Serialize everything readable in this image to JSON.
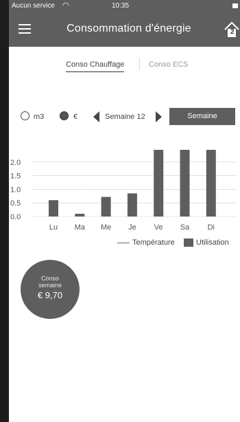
{
  "status_bar": {
    "carrier": "Aucun service",
    "time": "10:35"
  },
  "header": {
    "title": "Consommation d'énergie",
    "menu_icon": "hamburger-icon",
    "home_icon": "home-icon",
    "home_count": "2"
  },
  "tabs": [
    {
      "label": "Conso Chauffage",
      "active": true
    },
    {
      "label": "Conso ECS",
      "active": false
    }
  ],
  "controls": {
    "unit_options": [
      {
        "label": "m3",
        "selected": false
      },
      {
        "label": "€",
        "selected": true
      }
    ],
    "week_label": "Semaine 12",
    "period_button": "Semaine"
  },
  "chart_data": {
    "type": "bar",
    "categories": [
      "Lu",
      "Ma",
      "Me",
      "Je",
      "Ve",
      "Sa",
      "Di"
    ],
    "series": [
      {
        "name": "Utilisation",
        "values": [
          0.6,
          0.1,
          0.72,
          0.85,
          2.45,
          2.45,
          2.45
        ]
      }
    ],
    "y_ticks": [
      "0.0",
      "0.5",
      "1.0",
      "1.5",
      "2.0"
    ],
    "ylim": [
      0,
      2.45
    ],
    "grid": true,
    "legend": [
      {
        "label": "Température",
        "kind": "line"
      },
      {
        "label": "Utilisation",
        "kind": "bar"
      }
    ],
    "legend_position": "bottom-right",
    "bar_color": "#5e5e5e"
  },
  "summary": {
    "line1": "Conso",
    "line2": "semaine",
    "value": "€ 9,70"
  },
  "colors": {
    "bar": "#5e5e5e",
    "accent": "#5e5e5e"
  }
}
